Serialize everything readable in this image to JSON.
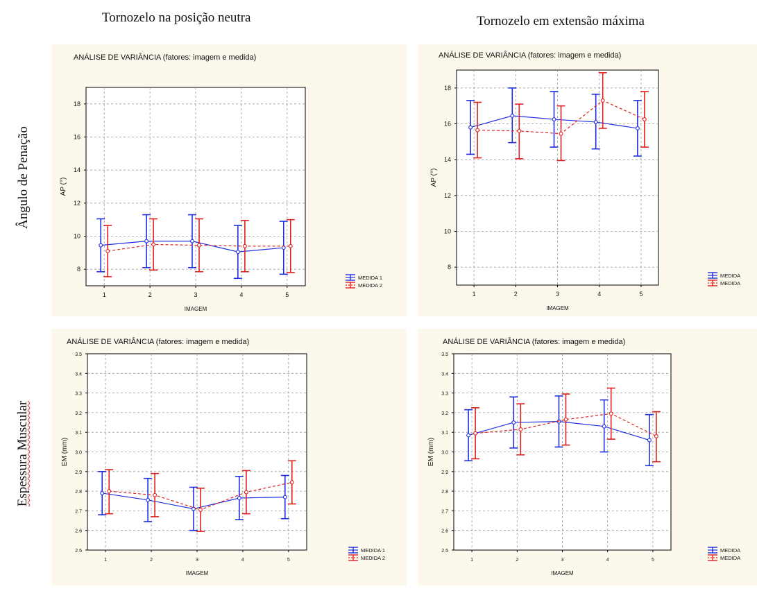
{
  "headers": {
    "col_left": "Tornozelo na posição neutra",
    "col_right": "Tornozelo em extensão máxima",
    "row_top": "Ângulo de Penação",
    "row_bottom": "Espessura Muscular"
  },
  "colors": {
    "medida1": "#1f2ee0",
    "medida2": "#e0201f",
    "panel_bg": "#fdf8ec"
  },
  "chart_data": [
    {
      "type": "line",
      "title": "ANÁLISE DE VARIÂNCIA (fatores: imagem e medida)",
      "xlabel": "IMAGEM",
      "ylabel": "AP (°)",
      "categories": [
        "1",
        "2",
        "3",
        "4",
        "5"
      ],
      "ylim": [
        7,
        19
      ],
      "yticks": [
        "8",
        "10",
        "12",
        "14",
        "16",
        "18"
      ],
      "grid": true,
      "legend": "right",
      "series": [
        {
          "name": "MEDIDA 1",
          "values": [
            9.45,
            9.7,
            9.7,
            9.05,
            9.3
          ],
          "lower": [
            7.85,
            8.1,
            8.1,
            7.45,
            7.7
          ],
          "upper": [
            11.05,
            11.3,
            11.3,
            10.65,
            10.9
          ]
        },
        {
          "name": "MEDIDA 2",
          "values": [
            9.1,
            9.5,
            9.45,
            9.4,
            9.4
          ],
          "lower": [
            7.55,
            7.95,
            7.85,
            7.85,
            7.8
          ],
          "upper": [
            10.65,
            11.05,
            11.05,
            10.95,
            11.0
          ]
        }
      ]
    },
    {
      "type": "line",
      "title": "ANÁLISE DE VARIÂNCIA (fatores: imagem e medida)",
      "xlabel": "IMAGEM",
      "ylabel": "AP (°)",
      "categories": [
        "1",
        "2",
        "3",
        "4",
        "5"
      ],
      "ylim": [
        7,
        19
      ],
      "yticks": [
        "8",
        "10",
        "12",
        "14",
        "16",
        "18"
      ],
      "grid": true,
      "legend": "right",
      "series": [
        {
          "name": "MEDIDA",
          "values": [
            15.8,
            16.45,
            16.25,
            16.1,
            15.75
          ],
          "lower": [
            14.3,
            14.95,
            14.7,
            14.6,
            14.2
          ],
          "upper": [
            17.3,
            18.0,
            17.8,
            17.65,
            17.3
          ]
        },
        {
          "name": "MEDIDA",
          "values": [
            15.65,
            15.6,
            15.45,
            17.3,
            16.25
          ],
          "lower": [
            14.1,
            14.05,
            13.95,
            15.75,
            14.7
          ],
          "upper": [
            17.2,
            17.1,
            17.0,
            18.85,
            17.8
          ]
        }
      ]
    },
    {
      "type": "line",
      "title": "ANÁLISE DE VARIÂNCIA (fatores: imagem e medida)",
      "xlabel": "IMAGEM",
      "ylabel": "EM (mm)",
      "categories": [
        "1",
        "2",
        "3",
        "4",
        "5"
      ],
      "ylim": [
        2.5,
        3.5
      ],
      "yticks": [
        "2.5",
        "2.6",
        "2.7",
        "2.8",
        "2.9",
        "3.0",
        "3.1",
        "3.2",
        "3.3",
        "3.4",
        "3.5"
      ],
      "grid": true,
      "legend": "right",
      "series": [
        {
          "name": "MEDIDA 1",
          "values": [
            2.79,
            2.755,
            2.71,
            2.765,
            2.77
          ],
          "lower": [
            2.68,
            2.645,
            2.6,
            2.655,
            2.66
          ],
          "upper": [
            2.9,
            2.865,
            2.82,
            2.875,
            2.88
          ]
        },
        {
          "name": "MEDIDA 2",
          "values": [
            2.8,
            2.78,
            2.705,
            2.795,
            2.845
          ],
          "lower": [
            2.685,
            2.67,
            2.595,
            2.685,
            2.735
          ],
          "upper": [
            2.91,
            2.89,
            2.815,
            2.905,
            2.955
          ]
        }
      ]
    },
    {
      "type": "line",
      "title": "ANÁLISE DE VARIÂNCIA (fatores: imagem e medida)",
      "xlabel": "IMAGEM",
      "ylabel": "EM (mm)",
      "categories": [
        "1",
        "2",
        "3",
        "4",
        "5"
      ],
      "ylim": [
        2.5,
        3.5
      ],
      "yticks": [
        "2.5",
        "2.6",
        "2.7",
        "2.8",
        "2.9",
        "3.0",
        "3.1",
        "3.2",
        "3.3",
        "3.4",
        "3.5"
      ],
      "grid": true,
      "legend": "right",
      "series": [
        {
          "name": "MEDIDA",
          "values": [
            3.085,
            3.15,
            3.155,
            3.13,
            3.06
          ],
          "lower": [
            2.955,
            3.02,
            3.025,
            3.0,
            2.93
          ],
          "upper": [
            3.215,
            3.28,
            3.285,
            3.265,
            3.19
          ]
        },
        {
          "name": "MEDIDA",
          "values": [
            3.095,
            3.115,
            3.165,
            3.195,
            3.08
          ],
          "lower": [
            2.965,
            2.985,
            3.035,
            3.065,
            2.95
          ],
          "upper": [
            3.225,
            3.245,
            3.295,
            3.325,
            3.205
          ]
        }
      ]
    }
  ]
}
